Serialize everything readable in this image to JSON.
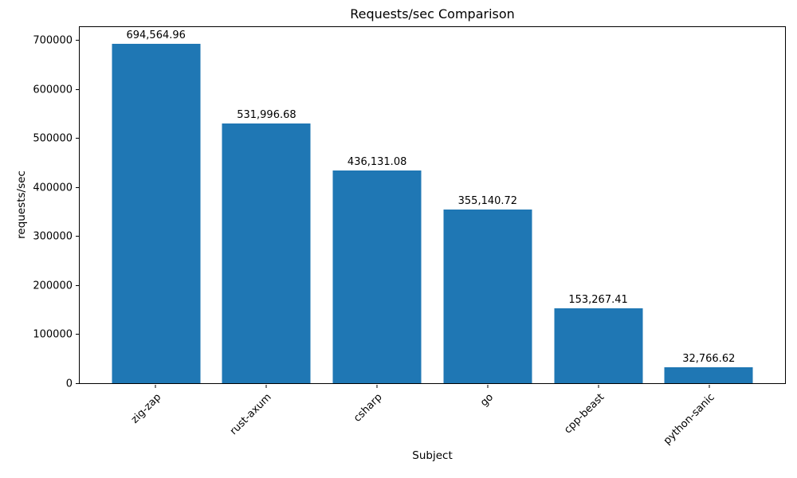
{
  "chart_data": {
    "type": "bar",
    "title": "Requests/sec Comparison",
    "xlabel": "Subject",
    "ylabel": "requests/sec",
    "categories": [
      "zig-zap",
      "rust-axum",
      "csharp",
      "go",
      "cpp-beast",
      "python-sanic"
    ],
    "values": [
      694564.96,
      531996.68,
      436131.08,
      355140.72,
      153267.41,
      32766.62
    ],
    "value_labels": [
      "694,564.96",
      "531,996.68",
      "436,131.08",
      "355,140.72",
      "153,267.41",
      "32,766.62"
    ],
    "yticks": [
      0,
      100000,
      200000,
      300000,
      400000,
      500000,
      600000,
      700000
    ],
    "ytick_labels": [
      "0",
      "100000",
      "200000",
      "300000",
      "400000",
      "500000",
      "600000",
      "700000"
    ],
    "ylim": [
      0,
      729293
    ],
    "bar_color": "#1f77b4",
    "text_color": "#000000",
    "spine_color": "#000000",
    "grid": false,
    "legend_position": "none",
    "xtick_rotation": 45,
    "bar_width_fraction": 0.8
  }
}
